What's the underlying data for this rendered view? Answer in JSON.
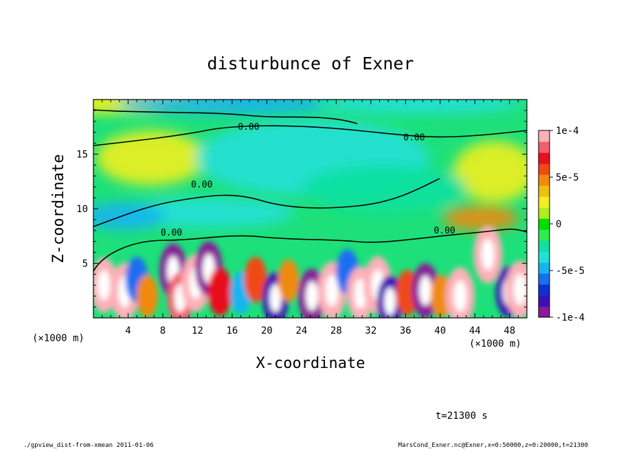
{
  "chart_data": {
    "type": "heatmap",
    "title": "disturbunce of Exner",
    "xlabel": "X-coordinate",
    "ylabel": "Z-coordinate",
    "x_unit": "(×1000 m)",
    "y_unit": "(×1000 m)",
    "xlim": [
      0,
      50
    ],
    "ylim": [
      0,
      20
    ],
    "x_ticks": [
      4,
      8,
      12,
      16,
      20,
      24,
      28,
      32,
      36,
      40,
      44,
      48
    ],
    "y_ticks": [
      5,
      10,
      15
    ],
    "colorbar": {
      "range": [
        -0.0001,
        0.0001
      ],
      "tick_values": [
        0.0001,
        5e-05,
        0,
        -5e-05,
        -0.0001
      ],
      "tick_labels": [
        "1e-4",
        "5e-5",
        "0",
        "-5e-5",
        "-1e-4"
      ],
      "colors": [
        "#8a1a9a",
        "#3c0fb4",
        "#1030d0",
        "#1a6ef0",
        "#18b4f0",
        "#22e0d8",
        "#10e0a0",
        "#30ea50",
        "#00e000",
        "#b0ee20",
        "#f0f020",
        "#f0c010",
        "#f08a10",
        "#f04a14",
        "#e8101c",
        "#f06070",
        "#fcb0b8"
      ]
    },
    "contour_labels": [
      {
        "text": "0.00",
        "x": 17.9,
        "z": 17.5
      },
      {
        "text": "0.00",
        "x": 37.0,
        "z": 16.5
      },
      {
        "text": "0.00",
        "x": 12.5,
        "z": 12.2
      },
      {
        "text": "0.00",
        "x": 9.0,
        "z": 7.8
      },
      {
        "text": "0.00",
        "x": 40.5,
        "z": 8.0
      }
    ],
    "surface_anomalies": [
      {
        "x": 1.2,
        "z": 3.0,
        "value": 9e-05
      },
      {
        "x": 3.6,
        "z": 2.4,
        "value": 0.0001
      },
      {
        "x": 5.0,
        "z": 3.5,
        "value": -6e-05
      },
      {
        "x": 6.2,
        "z": 2.0,
        "value": 5e-05
      },
      {
        "x": 9.2,
        "z": 4.3,
        "value": -9e-05
      },
      {
        "x": 10.0,
        "z": 1.8,
        "value": 8e-05
      },
      {
        "x": 11.8,
        "z": 3.2,
        "value": 0.0001
      },
      {
        "x": 13.3,
        "z": 4.5,
        "value": -9e-05
      },
      {
        "x": 14.6,
        "z": 2.4,
        "value": 7e-05
      },
      {
        "x": 17.0,
        "z": 2.3,
        "value": -5e-05
      },
      {
        "x": 18.7,
        "z": 3.5,
        "value": 6e-05
      },
      {
        "x": 21.0,
        "z": 1.8,
        "value": -8e-05
      },
      {
        "x": 22.5,
        "z": 3.4,
        "value": 5e-05
      },
      {
        "x": 25.2,
        "z": 2.0,
        "value": -9e-05
      },
      {
        "x": 27.5,
        "z": 2.5,
        "value": 0.0001
      },
      {
        "x": 29.3,
        "z": 4.2,
        "value": -6e-05
      },
      {
        "x": 30.8,
        "z": 2.2,
        "value": 9e-05
      },
      {
        "x": 32.8,
        "z": 3.0,
        "value": 0.0001
      },
      {
        "x": 34.2,
        "z": 1.5,
        "value": -8e-05
      },
      {
        "x": 36.2,
        "z": 2.3,
        "value": 6e-05
      },
      {
        "x": 38.3,
        "z": 2.5,
        "value": -9e-05
      },
      {
        "x": 40.1,
        "z": 2.0,
        "value": 5e-05
      },
      {
        "x": 42.3,
        "z": 2.0,
        "value": 0.0001
      },
      {
        "x": 45.5,
        "z": 5.8,
        "value": 0.0001
      },
      {
        "x": 47.9,
        "z": 2.4,
        "value": -8e-05
      },
      {
        "x": 49.2,
        "z": 2.6,
        "value": 0.0001
      }
    ]
  },
  "footer": {
    "time": "t=21300 s",
    "left": "./gpview_dist-from-xmean  2011-01-06",
    "right": "MarsCond_Exner.nc@Exner,x=0:50000,z=0:20000,t=21300"
  }
}
